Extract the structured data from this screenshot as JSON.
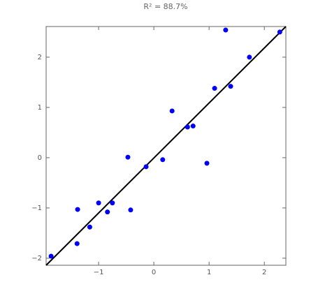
{
  "chart_data": {
    "type": "scatter",
    "title": "R² = 88.7%",
    "color": "#0000ff",
    "x": [
      -1.86,
      -1.39,
      -1.38,
      -1.16,
      -1.0,
      -0.84,
      -0.75,
      -0.47,
      -0.42,
      -0.14,
      0.16,
      0.33,
      0.61,
      0.71,
      0.96,
      1.1,
      1.3,
      1.39,
      1.73,
      2.28
    ],
    "values": [
      -1.96,
      -1.71,
      -1.03,
      -1.38,
      -0.9,
      -1.08,
      -0.9,
      0.01,
      -1.04,
      -0.18,
      -0.04,
      0.93,
      0.61,
      0.63,
      -0.11,
      1.38,
      2.54,
      1.42,
      2.0,
      2.5
    ],
    "fit_line": {
      "x": [
        -1.95,
        2.39
      ],
      "y": [
        -2.14,
        2.61
      ],
      "color": "#000000"
    },
    "xlim": [
      -1.95,
      2.39
    ],
    "ylim": [
      -2.14,
      2.61
    ],
    "xticks": [
      {
        "value": -1,
        "label": "−1"
      },
      0,
      1,
      2
    ],
    "yticks": [
      {
        "value": -2,
        "label": "−2"
      },
      {
        "value": -1,
        "label": "−1"
      },
      0,
      1,
      2
    ]
  }
}
